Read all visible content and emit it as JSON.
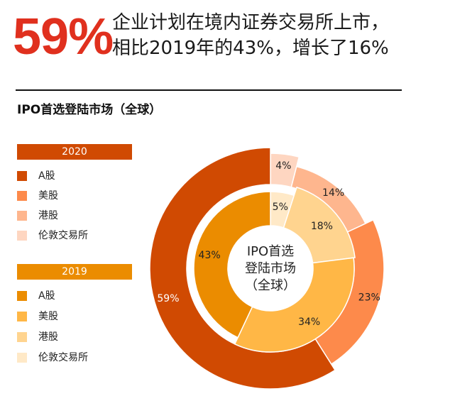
{
  "headline": {
    "big_number": "59%",
    "line1": "企业计划在境内证券交易所上市，",
    "line2": "相比2019年的43%，增长了16%"
  },
  "section_title": "IPO首选登陆市场（全球）",
  "center_label": [
    "IPO首选",
    "登陆市场",
    "（全球）"
  ],
  "chart_data": {
    "type": "pie",
    "variant": "nested-donut",
    "title": "IPO首选登陆市场（全球）",
    "series": [
      {
        "name": "2020",
        "ring": "outer",
        "categories": [
          "A股",
          "美股",
          "港股",
          "伦敦交易所"
        ],
        "values": [
          59,
          23,
          14,
          4
        ],
        "labels": [
          "59%",
          "23%",
          "14%",
          "4%"
        ],
        "colors": [
          "#d04a02",
          "#fd8a4b",
          "#feb68e",
          "#fed6c1"
        ]
      },
      {
        "name": "2019",
        "ring": "inner",
        "categories": [
          "A股",
          "美股",
          "港股",
          "伦敦交易所"
        ],
        "values": [
          43,
          34,
          18,
          5
        ],
        "labels": [
          "43%",
          "34%",
          "18%",
          "5%"
        ],
        "colors": [
          "#eb8c00",
          "#ffb746",
          "#ffd48f",
          "#ffe9c7"
        ]
      }
    ],
    "legend_placement": "left"
  },
  "legend": [
    {
      "year": "2020",
      "bar_color": "#d04a02",
      "items": [
        {
          "label": "A股",
          "color": "#d04a02"
        },
        {
          "label": "美股",
          "color": "#fd8a4b"
        },
        {
          "label": "港股",
          "color": "#feb68e"
        },
        {
          "label": "伦敦交易所",
          "color": "#fed6c1"
        }
      ]
    },
    {
      "year": "2019",
      "bar_color": "#eb8c00",
      "items": [
        {
          "label": "A股",
          "color": "#eb8c00"
        },
        {
          "label": "美股",
          "color": "#ffb746"
        },
        {
          "label": "港股",
          "color": "#ffd48f"
        },
        {
          "label": "伦敦交易所",
          "color": "#ffe9c7"
        }
      ]
    }
  ]
}
